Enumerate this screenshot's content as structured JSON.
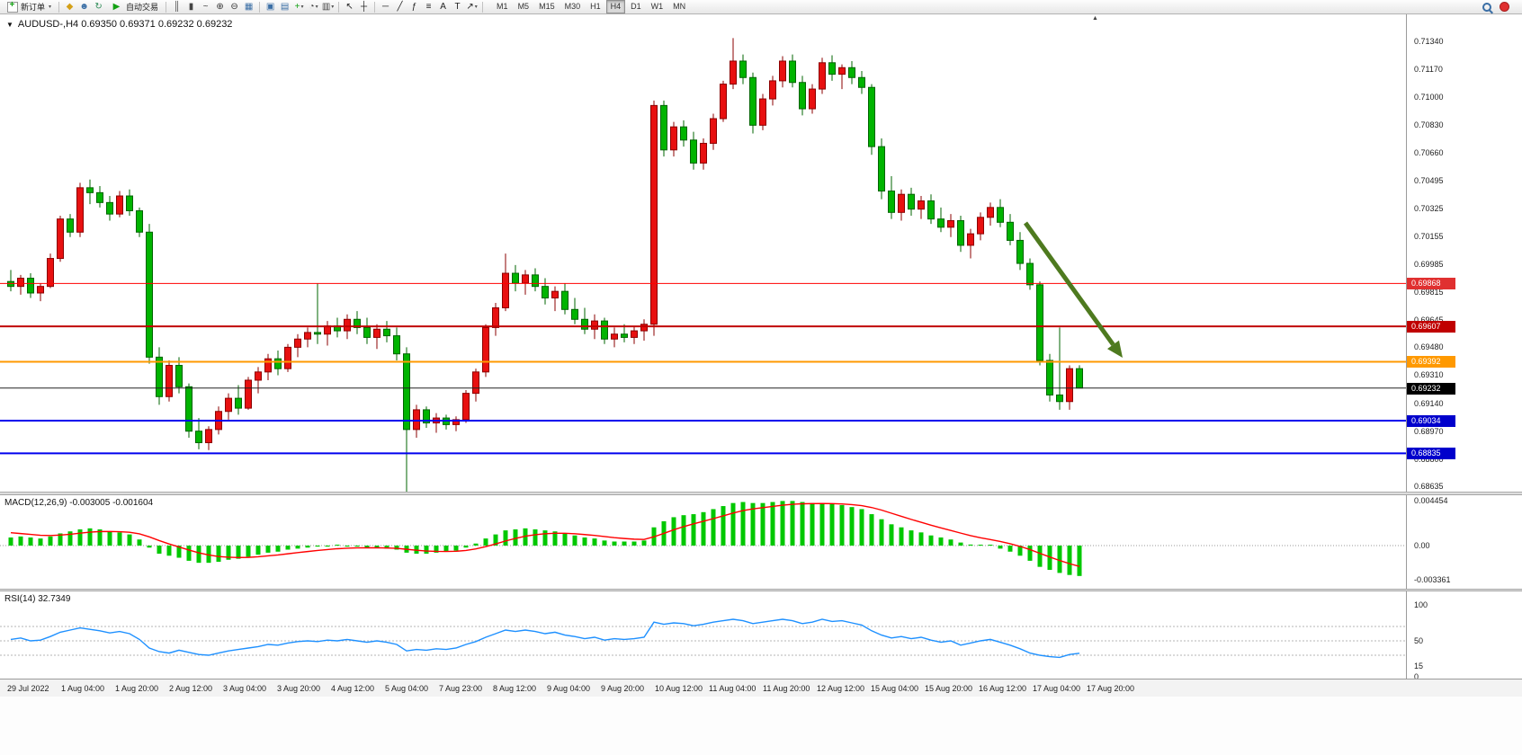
{
  "toolbar": {
    "new_order_label": "新订单",
    "auto_trading_label": "自动交易",
    "timeframes": {
      "items": [
        "M1",
        "M5",
        "M15",
        "M30",
        "H1",
        "H4",
        "D1",
        "W1",
        "MN"
      ],
      "active": "H4"
    },
    "icon_groups": {
      "left": [
        {
          "name": "bell-icon",
          "glyph": "◆",
          "color": "#d4a017"
        },
        {
          "name": "users-icon",
          "glyph": "☻",
          "color": "#3a6ea5"
        },
        {
          "name": "refresh-icon",
          "glyph": "↻",
          "color": "#2e8b57"
        }
      ],
      "chart_types": [
        {
          "name": "bar-chart-icon",
          "glyph": "║",
          "color": "#444444"
        },
        {
          "name": "candlestick-icon",
          "glyph": "▮",
          "color": "#444444"
        },
        {
          "name": "line-chart-icon",
          "glyph": "~",
          "color": "#444444"
        },
        {
          "name": "zoom-in-icon",
          "glyph": "⊕",
          "color": "#333333"
        },
        {
          "name": "zoom-out-icon",
          "glyph": "⊖",
          "color": "#333333"
        },
        {
          "name": "tile-windows-icon",
          "glyph": "▦",
          "color": "#3a6ea5"
        }
      ],
      "chart_tools": [
        {
          "name": "cascade-windows-icon",
          "glyph": "▣",
          "color": "#3a6ea5"
        },
        {
          "name": "arrange-windows-icon",
          "glyph": "▤",
          "color": "#3a6ea5"
        },
        {
          "name": "indicators-icon",
          "glyph": "+",
          "color": "#13a113",
          "caret": true
        },
        {
          "name": "clock-icon",
          "glyph": "◔",
          "color": "#444444",
          "caret": true
        },
        {
          "name": "templates-icon",
          "glyph": "▥",
          "color": "#444444",
          "caret": true
        }
      ],
      "cursor_tools": [
        {
          "name": "cursor-icon",
          "glyph": "↖",
          "color": "#222222"
        },
        {
          "name": "crosshair-icon",
          "glyph": "┼",
          "color": "#222222"
        }
      ],
      "line_tools": [
        {
          "name": "horizontal-line-icon",
          "glyph": "─",
          "color": "#222222"
        },
        {
          "name": "trendline-icon",
          "glyph": "╱",
          "color": "#222222"
        },
        {
          "name": "fibonacci-icon",
          "glyph": "ƒ",
          "color": "#222222"
        },
        {
          "name": "levels-icon",
          "glyph": "≡",
          "color": "#222222"
        },
        {
          "name": "text-icon",
          "glyph": "A",
          "color": "#222222"
        },
        {
          "name": "label-icon",
          "glyph": "T",
          "color": "#222222"
        },
        {
          "name": "arrows-icon",
          "glyph": "↗",
          "color": "#222222",
          "caret": true
        }
      ]
    }
  },
  "chart_data": {
    "type": "candlestick",
    "symbol": "AUDUSD-",
    "timeframe": "H4",
    "title": "AUDUSD-,H4 0.69350 0.69371 0.69232 0.69232",
    "current_bar": {
      "open": 0.6935,
      "high": 0.69371,
      "low": 0.69232,
      "close": 0.69232
    },
    "colors": {
      "up": "#e81010",
      "up_border": "#8b0000",
      "down": "#00b400",
      "down_border": "#006400"
    },
    "y_axis_labels": [
      "0.71340",
      "0.71170",
      "0.71000",
      "0.70830",
      "0.70660",
      "0.70495",
      "0.70325",
      "0.70155",
      "0.69985",
      "0.69815",
      "0.69645",
      "0.69480",
      "0.69310",
      "0.69140",
      "0.68970",
      "0.68800",
      "0.68635"
    ],
    "x_axis_labels": [
      "29 Jul 2022",
      "1 Aug 04:00",
      "1 Aug 20:00",
      "2 Aug 12:00",
      "3 Aug 04:00",
      "3 Aug 20:00",
      "4 Aug 12:00",
      "5 Aug 04:00",
      "7 Aug 23:00",
      "8 Aug 12:00",
      "9 Aug 04:00",
      "9 Aug 20:00",
      "10 Aug 12:00",
      "11 Aug 04:00",
      "11 Aug 20:00",
      "12 Aug 12:00",
      "15 Aug 04:00",
      "15 Aug 20:00",
      "16 Aug 12:00",
      "17 Aug 04:00",
      "17 Aug 20:00"
    ],
    "horizontal_lines": [
      {
        "price": 0.69868,
        "label": "0.69868",
        "color": "#ff0000",
        "badge_bg": "#e03030",
        "width": 1
      },
      {
        "price": 0.69607,
        "label": "0.69607",
        "color": "#c00000",
        "badge_bg": "#c00000",
        "width": 2
      },
      {
        "price": 0.69392,
        "label": "0.69392",
        "color": "#ff9900",
        "badge_bg": "#ff9900",
        "width": 2
      },
      {
        "price": 0.69232,
        "label": "0.69232",
        "color": "#222222",
        "badge_bg": "#000000",
        "width": 1
      },
      {
        "price": 0.69034,
        "label": "0.69034",
        "color": "#0000ee",
        "badge_bg": "#0000cc",
        "width": 2
      },
      {
        "price": 0.68835,
        "label": "0.68835",
        "color": "#0000ee",
        "badge_bg": "#0000cc",
        "width": 2
      }
    ],
    "trend_arrow": {
      "direction": "down-right",
      "color": "#4e7a1f"
    },
    "candles": [
      [
        0.6988,
        0.6995,
        0.6982,
        0.6985
      ],
      [
        0.6985,
        0.6992,
        0.698,
        0.699
      ],
      [
        0.699,
        0.6993,
        0.6978,
        0.6981
      ],
      [
        0.6981,
        0.6987,
        0.6976,
        0.6985
      ],
      [
        0.6985,
        0.7005,
        0.6984,
        0.7002
      ],
      [
        0.7002,
        0.7028,
        0.7,
        0.7026
      ],
      [
        0.7026,
        0.7029,
        0.7015,
        0.7018
      ],
      [
        0.7018,
        0.7048,
        0.7015,
        0.7045
      ],
      [
        0.7045,
        0.705,
        0.7035,
        0.7042
      ],
      [
        0.7042,
        0.7046,
        0.7033,
        0.7036
      ],
      [
        0.7036,
        0.704,
        0.7025,
        0.7029
      ],
      [
        0.7029,
        0.7043,
        0.7027,
        0.704
      ],
      [
        0.704,
        0.7044,
        0.7028,
        0.7031
      ],
      [
        0.7031,
        0.7033,
        0.7015,
        0.7018
      ],
      [
        0.7018,
        0.7023,
        0.6938,
        0.6942
      ],
      [
        0.6942,
        0.6948,
        0.6913,
        0.6918
      ],
      [
        0.6918,
        0.694,
        0.6915,
        0.6937
      ],
      [
        0.6937,
        0.6942,
        0.692,
        0.6924
      ],
      [
        0.6924,
        0.6926,
        0.6893,
        0.6897
      ],
      [
        0.6897,
        0.6905,
        0.6886,
        0.689
      ],
      [
        0.689,
        0.69,
        0.68855,
        0.6898
      ],
      [
        0.6898,
        0.6912,
        0.6895,
        0.6909
      ],
      [
        0.6909,
        0.692,
        0.6904,
        0.6917
      ],
      [
        0.6917,
        0.6925,
        0.6907,
        0.6911
      ],
      [
        0.6911,
        0.693,
        0.691,
        0.6928
      ],
      [
        0.6928,
        0.6936,
        0.692,
        0.6933
      ],
      [
        0.6933,
        0.6944,
        0.6928,
        0.6941
      ],
      [
        0.6941,
        0.6946,
        0.6931,
        0.6935
      ],
      [
        0.6935,
        0.695,
        0.6933,
        0.6948
      ],
      [
        0.6948,
        0.6956,
        0.6942,
        0.6953
      ],
      [
        0.6953,
        0.696,
        0.6948,
        0.6957
      ],
      [
        0.6957,
        0.6987,
        0.695,
        0.6956
      ],
      [
        0.6956,
        0.6964,
        0.6949,
        0.6961
      ],
      [
        0.6961,
        0.6966,
        0.6954,
        0.6958
      ],
      [
        0.6958,
        0.6968,
        0.6953,
        0.6965
      ],
      [
        0.6965,
        0.697,
        0.6956,
        0.696
      ],
      [
        0.696,
        0.6966,
        0.695,
        0.6954
      ],
      [
        0.6954,
        0.6962,
        0.6947,
        0.6959
      ],
      [
        0.6959,
        0.6964,
        0.6951,
        0.6955
      ],
      [
        0.6955,
        0.696,
        0.694,
        0.6944
      ],
      [
        0.6944,
        0.6948,
        0.686,
        0.6898
      ],
      [
        0.6898,
        0.6913,
        0.6893,
        0.691
      ],
      [
        0.691,
        0.6912,
        0.6899,
        0.6902
      ],
      [
        0.6902,
        0.6908,
        0.6896,
        0.6905
      ],
      [
        0.6905,
        0.6907,
        0.6898,
        0.6901
      ],
      [
        0.6901,
        0.6906,
        0.6897,
        0.6904
      ],
      [
        0.6904,
        0.6922,
        0.6902,
        0.692
      ],
      [
        0.692,
        0.6935,
        0.6915,
        0.6933
      ],
      [
        0.6933,
        0.6962,
        0.693,
        0.696
      ],
      [
        0.696,
        0.6975,
        0.6955,
        0.6972
      ],
      [
        0.6972,
        0.7005,
        0.697,
        0.6993
      ],
      [
        0.6993,
        0.6998,
        0.6982,
        0.6987
      ],
      [
        0.6987,
        0.6995,
        0.698,
        0.6992
      ],
      [
        0.6992,
        0.6996,
        0.6982,
        0.6985
      ],
      [
        0.6985,
        0.699,
        0.6974,
        0.6978
      ],
      [
        0.6978,
        0.6985,
        0.697,
        0.6982
      ],
      [
        0.6982,
        0.6987,
        0.6968,
        0.6971
      ],
      [
        0.6971,
        0.6978,
        0.6962,
        0.6965
      ],
      [
        0.6965,
        0.6972,
        0.6956,
        0.6959
      ],
      [
        0.6959,
        0.6968,
        0.6953,
        0.6964
      ],
      [
        0.6964,
        0.6966,
        0.695,
        0.6953
      ],
      [
        0.6953,
        0.696,
        0.6948,
        0.6956
      ],
      [
        0.6956,
        0.6962,
        0.6951,
        0.6954
      ],
      [
        0.6954,
        0.6961,
        0.695,
        0.6958
      ],
      [
        0.6958,
        0.6965,
        0.6952,
        0.6962
      ],
      [
        0.6962,
        0.7098,
        0.6955,
        0.7095
      ],
      [
        0.7095,
        0.7098,
        0.7064,
        0.7068
      ],
      [
        0.7068,
        0.7085,
        0.7064,
        0.7082
      ],
      [
        0.7082,
        0.7086,
        0.707,
        0.7074
      ],
      [
        0.7074,
        0.7079,
        0.7056,
        0.706
      ],
      [
        0.706,
        0.7075,
        0.7056,
        0.7072
      ],
      [
        0.7072,
        0.709,
        0.7068,
        0.7087
      ],
      [
        0.7087,
        0.711,
        0.7085,
        0.7108
      ],
      [
        0.7108,
        0.7136,
        0.7105,
        0.7122
      ],
      [
        0.7122,
        0.7126,
        0.7108,
        0.7112
      ],
      [
        0.7112,
        0.7115,
        0.7078,
        0.7083
      ],
      [
        0.7083,
        0.7102,
        0.708,
        0.7099
      ],
      [
        0.7099,
        0.7113,
        0.7095,
        0.711
      ],
      [
        0.711,
        0.7125,
        0.7106,
        0.7122
      ],
      [
        0.7122,
        0.7126,
        0.7106,
        0.7109
      ],
      [
        0.7109,
        0.7113,
        0.7089,
        0.7093
      ],
      [
        0.7093,
        0.7108,
        0.709,
        0.7105
      ],
      [
        0.7105,
        0.7124,
        0.7102,
        0.7121
      ],
      [
        0.7121,
        0.71255,
        0.711,
        0.7114
      ],
      [
        0.7114,
        0.712,
        0.7105,
        0.7118
      ],
      [
        0.7118,
        0.7122,
        0.7108,
        0.7112
      ],
      [
        0.7112,
        0.7116,
        0.7102,
        0.7106
      ],
      [
        0.7106,
        0.7108,
        0.7065,
        0.707
      ],
      [
        0.707,
        0.7075,
        0.7038,
        0.7043
      ],
      [
        0.7043,
        0.7052,
        0.7026,
        0.703
      ],
      [
        0.703,
        0.7044,
        0.7025,
        0.7041
      ],
      [
        0.7041,
        0.7045,
        0.7028,
        0.7032
      ],
      [
        0.7032,
        0.704,
        0.7026,
        0.7037
      ],
      [
        0.7037,
        0.7041,
        0.7023,
        0.7026
      ],
      [
        0.7026,
        0.7033,
        0.7018,
        0.7021
      ],
      [
        0.7021,
        0.7029,
        0.7015,
        0.7025
      ],
      [
        0.7025,
        0.7028,
        0.7006,
        0.701
      ],
      [
        0.701,
        0.702,
        0.7002,
        0.7017
      ],
      [
        0.7017,
        0.703,
        0.7013,
        0.7027
      ],
      [
        0.7027,
        0.7036,
        0.7022,
        0.7033
      ],
      [
        0.7033,
        0.7038,
        0.7021,
        0.7024
      ],
      [
        0.7024,
        0.7029,
        0.701,
        0.7013
      ],
      [
        0.7013,
        0.7018,
        0.6995,
        0.6999
      ],
      [
        0.6999,
        0.7002,
        0.6983,
        0.6986
      ],
      [
        0.6986,
        0.6988,
        0.6937,
        0.694
      ],
      [
        0.694,
        0.6944,
        0.6915,
        0.6919
      ],
      [
        0.6919,
        0.696,
        0.691,
        0.6915
      ],
      [
        0.6915,
        0.6937,
        0.691,
        0.6935
      ],
      [
        0.6935,
        0.69371,
        0.69232,
        0.69232
      ]
    ],
    "macd": {
      "label": "MACD(12,26,9)",
      "title_text": "MACD(12,26,9) -0.003005 -0.001604",
      "value": -0.003005,
      "signal_value": -0.001604,
      "y_axis_labels": [
        "0.004454",
        "0.00",
        "-0.003361"
      ],
      "y_axis_values": [
        0.004454,
        0,
        -0.003361
      ],
      "histogram_color": "#00c800",
      "signal_color": "#ff0000",
      "signal_alpha": 0.22,
      "signal_seed": 0.0014,
      "histogram": [
        0.0008,
        0.0009,
        0.0008,
        0.0007,
        0.0009,
        0.0012,
        0.0014,
        0.0016,
        0.0017,
        0.0016,
        0.0014,
        0.0013,
        0.0011,
        0.0006,
        -0.0002,
        -0.0008,
        -0.001,
        -0.0012,
        -0.0015,
        -0.0017,
        -0.0017,
        -0.0016,
        -0.0014,
        -0.0013,
        -0.0011,
        -0.0009,
        -0.0007,
        -0.0006,
        -0.0004,
        -0.0003,
        -0.0002,
        -0.0001,
        -0.0001,
        0.0,
        -0.0001,
        -0.0001,
        -0.0002,
        -0.0002,
        -0.0003,
        -0.0004,
        -0.0007,
        -0.0008,
        -0.0008,
        -0.0007,
        -0.0006,
        -0.0005,
        -0.0002,
        0.0002,
        0.0007,
        0.0011,
        0.0015,
        0.0016,
        0.0017,
        0.0016,
        0.0015,
        0.0014,
        0.0012,
        0.001,
        0.0008,
        0.0007,
        0.0005,
        0.0004,
        0.0004,
        0.0004,
        0.0005,
        0.0018,
        0.0024,
        0.0028,
        0.003,
        0.0031,
        0.0033,
        0.0036,
        0.0039,
        0.0042,
        0.0043,
        0.0042,
        0.0042,
        0.0043,
        0.0044,
        0.0044,
        0.0043,
        0.0042,
        0.0042,
        0.0041,
        0.004,
        0.0038,
        0.0036,
        0.0031,
        0.0026,
        0.0021,
        0.0018,
        0.0015,
        0.0013,
        0.001,
        0.0008,
        0.0006,
        0.0003,
        0.0001,
        0.0,
        0.0,
        -0.0003,
        -0.0006,
        -0.001,
        -0.0015,
        -0.0021,
        -0.0024,
        -0.0027,
        -0.0029,
        -0.003
      ]
    },
    "rsi": {
      "label": "RSI(14)",
      "title_text": "RSI(14) 32.7349",
      "value": 32.7349,
      "line_color": "#1E90FF",
      "levels": [
        70,
        50,
        30
      ],
      "y_axis_labels": [
        "100",
        "50",
        "15",
        "0"
      ],
      "y_axis_values": [
        100,
        50,
        15,
        0
      ],
      "series": [
        52,
        54,
        50,
        51,
        56,
        62,
        65,
        68,
        66,
        64,
        61,
        63,
        60,
        52,
        40,
        35,
        33,
        37,
        34,
        31,
        30,
        33,
        36,
        38,
        40,
        42,
        45,
        44,
        47,
        49,
        50,
        49,
        51,
        50,
        52,
        50,
        48,
        50,
        48,
        45,
        36,
        38,
        37,
        39,
        38,
        40,
        45,
        49,
        55,
        60,
        65,
        63,
        65,
        63,
        60,
        62,
        58,
        56,
        53,
        55,
        51,
        53,
        52,
        53,
        55,
        76,
        73,
        75,
        74,
        71,
        73,
        76,
        78,
        80,
        78,
        74,
        76,
        78,
        80,
        78,
        74,
        76,
        80,
        77,
        78,
        75,
        72,
        64,
        58,
        54,
        56,
        53,
        55,
        51,
        48,
        50,
        44,
        47,
        50,
        52,
        48,
        44,
        39,
        33,
        30,
        28,
        27,
        31,
        32.7
      ]
    }
  }
}
